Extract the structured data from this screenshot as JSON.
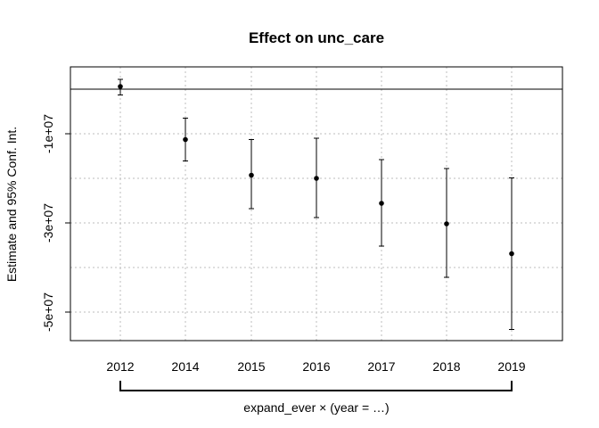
{
  "chart_data": {
    "type": "scatter",
    "title": "Effect on unc_care",
    "xlabel": "expand_ever × (year = …)",
    "ylabel": "Estimate and 95% Conf. Int.",
    "categories": [
      "2012",
      "2014",
      "2015",
      "2016",
      "2017",
      "2018",
      "2019"
    ],
    "y_tick_values": [
      -10000000,
      -30000000,
      -50000000
    ],
    "y_tick_labels": [
      "-1e+07",
      "-3e+07",
      "-5e+07"
    ],
    "ylim": [
      -56000000,
      4000000
    ],
    "grid": true,
    "reference_line": 0,
    "series": [
      {
        "estimate": [
          600000,
          -11300000,
          -19300000,
          -20000000,
          -25600000,
          -30200000,
          -36900000
        ],
        "ci_low": [
          -1300000,
          -16100000,
          -26800000,
          -28800000,
          -35200000,
          -42200000,
          -53900000
        ],
        "ci_high": [
          2200000,
          -6500000,
          -11300000,
          -11000000,
          -15800000,
          -17800000,
          -19900000
        ]
      }
    ]
  }
}
